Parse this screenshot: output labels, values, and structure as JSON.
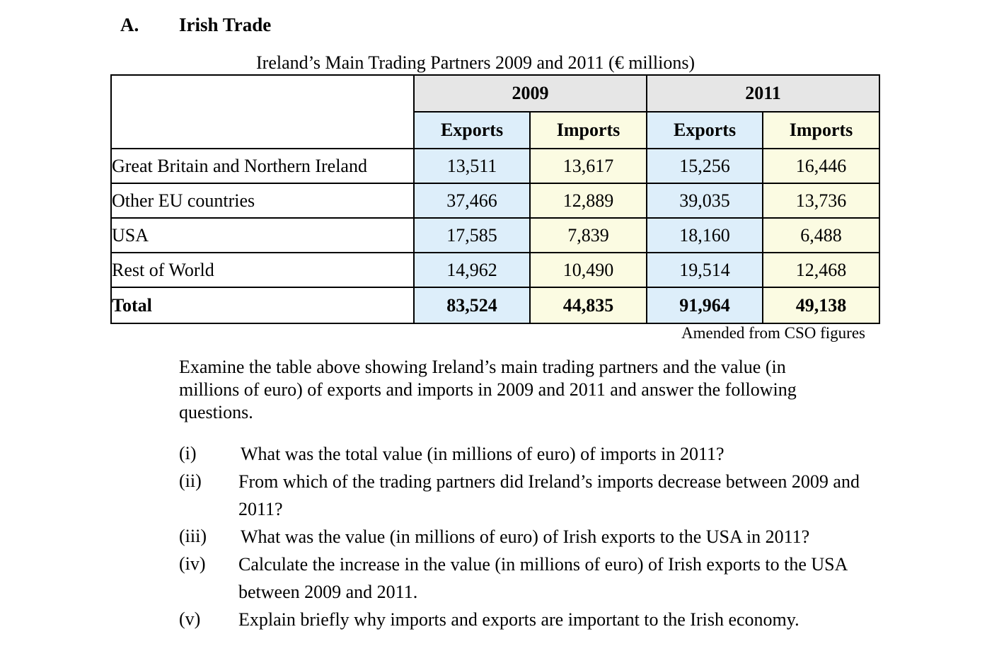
{
  "section": {
    "letter": "A.",
    "title": "Irish Trade"
  },
  "table": {
    "caption": "Ireland’s Main Trading Partners 2009 and 2011 (€ millions)",
    "years": [
      "2009",
      "2011"
    ],
    "subheaders": [
      "Exports",
      "Imports",
      "Exports",
      "Imports"
    ],
    "rows": [
      {
        "label": "Great Britain and Northern Ireland",
        "values": [
          "13,511",
          "13,617",
          "15,256",
          "16,446"
        ]
      },
      {
        "label": "Other EU countries",
        "values": [
          "37,466",
          "12,889",
          "39,035",
          "13,736"
        ]
      },
      {
        "label": "USA",
        "values": [
          "17,585",
          "7,839",
          "18,160",
          "6,488"
        ]
      },
      {
        "label": "Rest of World",
        "values": [
          "14,962",
          "10,490",
          "19,514",
          "12,468"
        ]
      },
      {
        "label": "Total",
        "values": [
          "83,524",
          "44,835",
          "91,964",
          "49,138"
        ]
      }
    ],
    "source": "Amended from CSO figures"
  },
  "intro": "Examine the table above showing Ireland’s main trading partners and the value (in millions of euro) of exports and imports in 2009 and 2011 and answer the following questions.",
  "questions": [
    {
      "num": "(i)",
      "text": "What was the total value (in millions of euro) of imports in 2011?"
    },
    {
      "num": "(ii)",
      "text": "From which of the trading partners did Ireland’s imports decrease between 2009 and 2011?"
    },
    {
      "num": "(iii)",
      "text": "What was the value (in millions of euro) of Irish exports to the USA in 2011?"
    },
    {
      "num": "(iv)",
      "text": "Calculate the increase in the value (in millions of euro) of Irish exports to the USA between 2009 and 2011."
    },
    {
      "num": "(v)",
      "text": "Explain briefly why imports and exports are important to the Irish economy."
    }
  ],
  "colors": {
    "exports_fill": "#ddeefa",
    "imports_fill": "#fbfbe2",
    "year_header_fill": "#e6e6e6"
  }
}
